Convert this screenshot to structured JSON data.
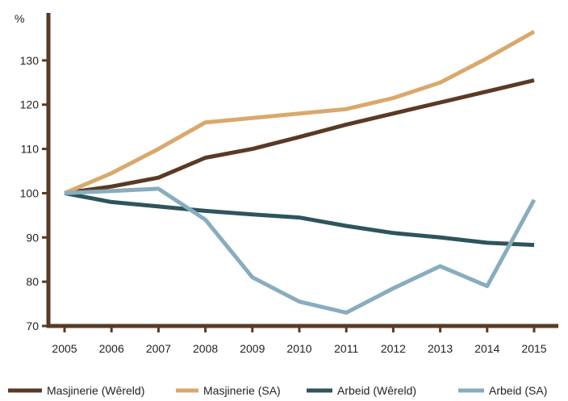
{
  "chart_data": {
    "type": "line",
    "title": "",
    "xlabel": "",
    "ylabel": "%",
    "x": [
      2005,
      2006,
      2007,
      2008,
      2009,
      2010,
      2011,
      2012,
      2013,
      2014,
      2015
    ],
    "ylim": [
      70,
      140
    ],
    "yticks": [
      70,
      80,
      90,
      100,
      110,
      120,
      130
    ],
    "grid": false,
    "legend_position": "bottom",
    "axis_color": "#5a3a24",
    "series": [
      {
        "name": "Masjinerie (Wêreld)",
        "color": "#5a3a24",
        "values": [
          100,
          101.5,
          103.5,
          108,
          110,
          112.7,
          115.5,
          118,
          120.5,
          123,
          125.5
        ]
      },
      {
        "name": "Masjinerie (SA)",
        "color": "#d9a86c",
        "values": [
          100,
          104.5,
          110,
          116,
          117,
          118,
          119,
          121.5,
          125,
          130.5,
          136.5
        ]
      },
      {
        "name": "Arbeid (Wêreld)",
        "color": "#2e545c",
        "values": [
          100,
          98,
          97,
          96,
          95.2,
          94.5,
          92.6,
          91,
          90,
          88.8,
          88.3
        ]
      },
      {
        "name": "Arbeid (SA)",
        "color": "#87adbf",
        "values": [
          100,
          100.5,
          101,
          94,
          81,
          75.5,
          73,
          78.5,
          83.5,
          79,
          98.5
        ]
      }
    ]
  }
}
